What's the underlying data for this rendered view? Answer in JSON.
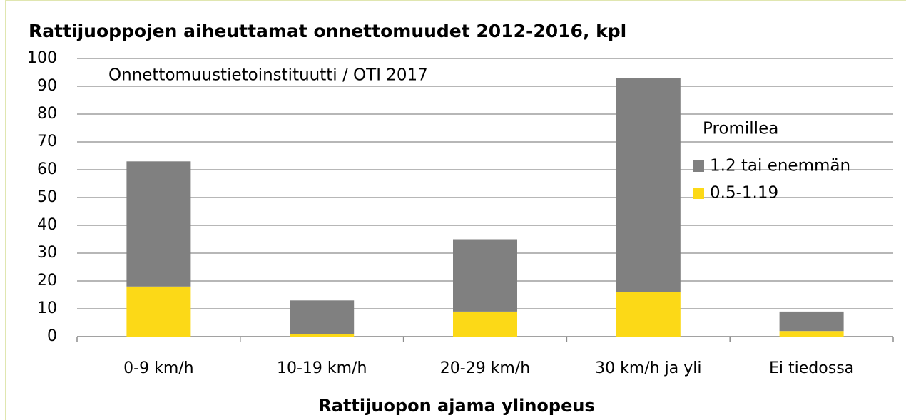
{
  "chart_data": {
    "type": "stacked_bar",
    "title": "Rattijuoppojen aiheuttamat onnettomuudet 2012-2016, kpl",
    "annotation": "Onnettomuustietoinstituutti / OTI 2017",
    "x_label": "Rattijuopon ajama ylinopeus",
    "legend_title": "Promillea",
    "categories": [
      "0-9 km/h",
      "10-19 km/h",
      "20-29 km/h",
      "30 km/h ja yli",
      "Ei tiedossa"
    ],
    "series": [
      {
        "name": "0.5-1.19",
        "color": "#fcd917",
        "values": [
          18,
          1,
          9,
          16,
          2
        ]
      },
      {
        "name": "1.2 tai enemmän",
        "color": "#808080",
        "values": [
          45,
          12,
          26,
          77,
          7
        ]
      }
    ],
    "ylim": [
      0,
      100
    ],
    "yticks": [
      0,
      10,
      20,
      30,
      40,
      50,
      60,
      70,
      80,
      90,
      100
    ],
    "grid": true
  }
}
